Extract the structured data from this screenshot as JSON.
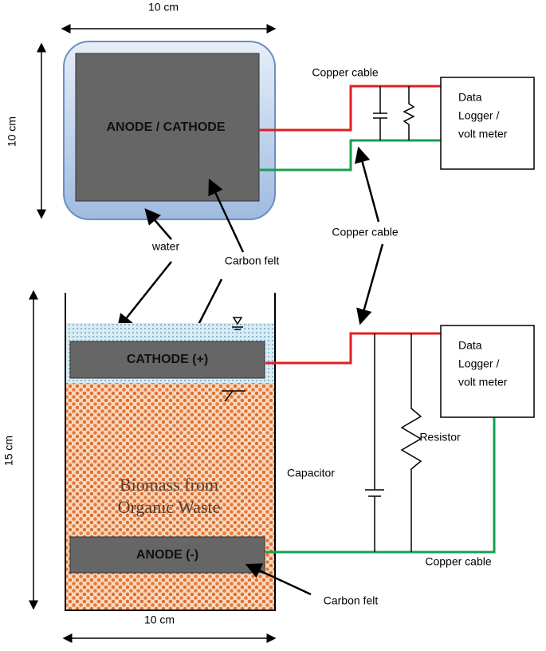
{
  "top_setup": {
    "width_label": "10 cm",
    "height_label": "10 cm",
    "electrode_label": "ANODE / CATHODE",
    "cable_label": "Copper cable",
    "logger_lines": [
      "Data",
      "Logger /",
      "volt meter"
    ]
  },
  "callouts": {
    "water": "water",
    "carbon_felt_top": "Carbon felt",
    "copper_cable_middle": "Copper cable"
  },
  "bottom_setup": {
    "height_label": "15 cm",
    "width_label": "10 cm",
    "cathode_label": "CATHODE (+)",
    "anode_label": "ANODE (-)",
    "biomass_lines": [
      "Biomass from",
      "Organic Waste"
    ],
    "capacitor_label": "Capacitor",
    "resistor_label": "Resistor",
    "logger_lines": [
      "Data",
      "Logger /",
      "volt meter"
    ],
    "cable_label": "Copper cable",
    "carbon_felt_label": "Carbon felt"
  }
}
